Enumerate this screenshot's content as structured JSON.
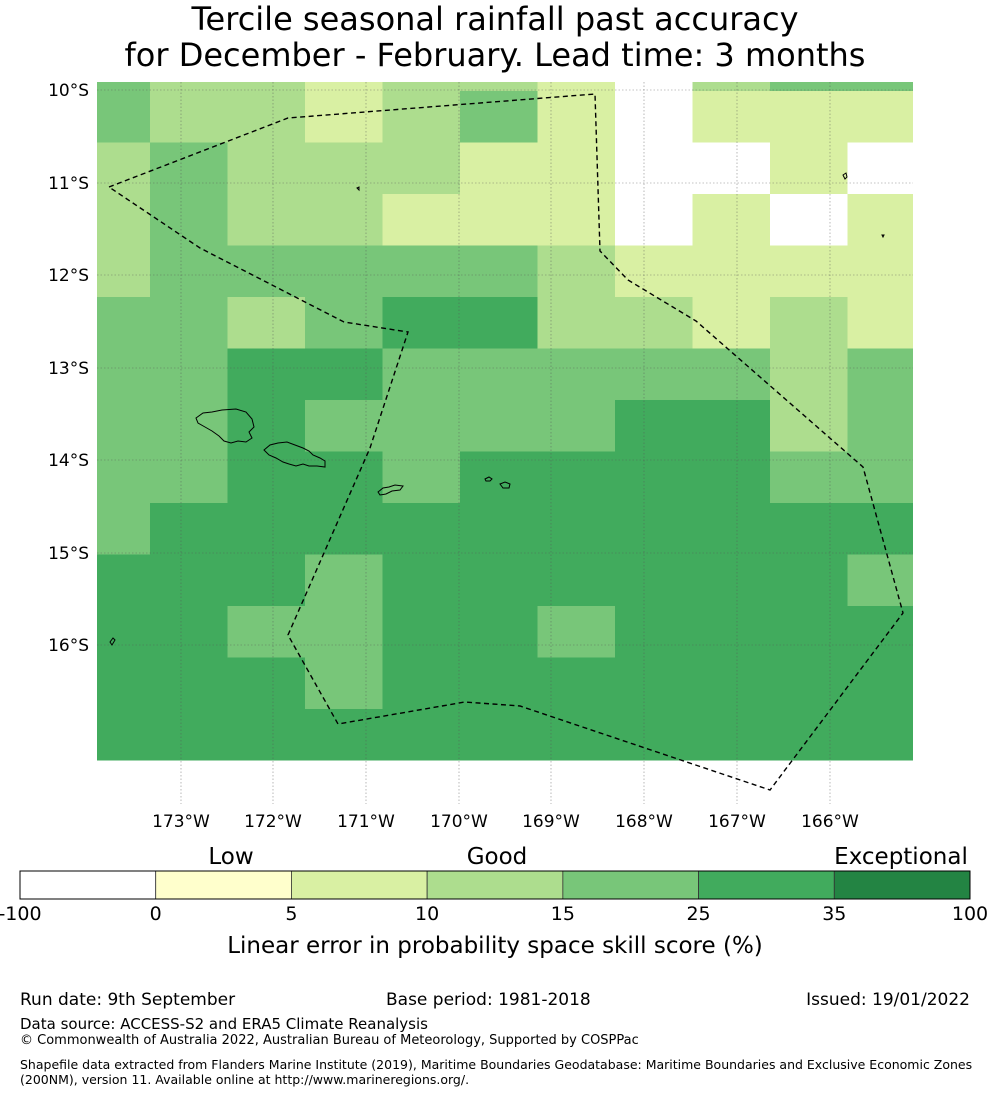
{
  "title": {
    "line1": "Tercile seasonal rainfall past accuracy",
    "line2": "for December - February. Lead time: 3 months"
  },
  "map": {
    "lat_labels": [
      "10°S",
      "11°S",
      "12°S",
      "13°S",
      "14°S",
      "15°S",
      "16°S"
    ],
    "lon_labels": [
      "173°W",
      "172°W",
      "171°W",
      "170°W",
      "169°W",
      "168°W",
      "167°W",
      "166°W"
    ],
    "grid_values": [
      [
        15,
        10,
        10,
        5,
        10,
        10,
        5,
        -1,
        10,
        15,
        15
      ],
      [
        15,
        10,
        10,
        5,
        10,
        15,
        5,
        -1,
        5,
        5,
        5
      ],
      [
        10,
        15,
        10,
        10,
        10,
        5,
        5,
        -1,
        -1,
        5,
        -1
      ],
      [
        10,
        15,
        10,
        10,
        5,
        5,
        5,
        -1,
        5,
        -1,
        5
      ],
      [
        10,
        15,
        15,
        15,
        15,
        15,
        10,
        5,
        5,
        5,
        5
      ],
      [
        15,
        15,
        10,
        15,
        25,
        25,
        10,
        10,
        5,
        10,
        5
      ],
      [
        15,
        15,
        25,
        25,
        15,
        15,
        15,
        15,
        15,
        10,
        15
      ],
      [
        15,
        15,
        25,
        15,
        15,
        15,
        15,
        25,
        25,
        10,
        15
      ],
      [
        15,
        15,
        25,
        25,
        15,
        25,
        25,
        25,
        25,
        15,
        15
      ],
      [
        15,
        25,
        25,
        25,
        25,
        25,
        25,
        25,
        25,
        25,
        25
      ],
      [
        25,
        25,
        25,
        15,
        25,
        25,
        25,
        25,
        25,
        25,
        15
      ],
      [
        25,
        25,
        15,
        15,
        25,
        25,
        15,
        25,
        25,
        25,
        25
      ],
      [
        25,
        25,
        25,
        15,
        25,
        25,
        25,
        25,
        25,
        25,
        25
      ],
      [
        25,
        25,
        25,
        25,
        25,
        25,
        25,
        25,
        25,
        25,
        25
      ]
    ]
  },
  "legend": {
    "category_labels": [
      "Low",
      "Good",
      "Exceptional"
    ],
    "tick_labels": [
      "-100",
      "0",
      "5",
      "10",
      "15",
      "25",
      "35",
      "100"
    ],
    "colors": [
      "#ffffff",
      "#ffffcc",
      "#d9f0a3",
      "#addd8e",
      "#78c679",
      "#41ab5d",
      "#238443"
    ],
    "axis_label": "Linear error in probability space skill score (%)"
  },
  "footer": {
    "run_date": "Run date: 9th September",
    "base_period": "Base period: 1981-2018",
    "issued": "Issued: 19/01/2022",
    "data_source": "Data source: ACCESS-S2 and ERA5 Climate Reanalysis",
    "copyright": "© Commonwealth of Australia 2022, Australian Bureau of Meteorology, Supported by COSPPac",
    "shapefile_line1": "Shapefile data extracted from Flanders Marine Institute (2019), Maritime Boundaries Geodatabase: Maritime Boundaries and Exclusive Economic Zones",
    "shapefile_line2": "(200NM), version 11. Available online at http://www.marineregions.org/."
  }
}
